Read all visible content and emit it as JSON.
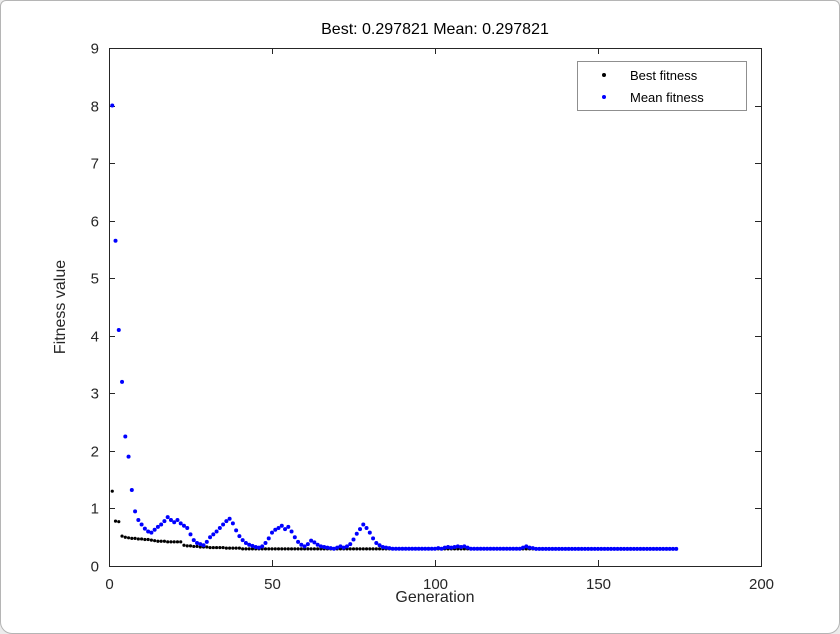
{
  "window": {
    "background": "#ffffff",
    "border_color": "#b5b5b5"
  },
  "chart_data": {
    "type": "scatter",
    "title": "Best: 0.297821 Mean: 0.297821",
    "xlabel": "Generation",
    "ylabel": "Fitness value",
    "xlim": [
      0,
      200
    ],
    "ylim": [
      0,
      9
    ],
    "x_ticks": [
      0,
      50,
      100,
      150,
      200
    ],
    "y_ticks": [
      0,
      1,
      2,
      3,
      4,
      5,
      6,
      7,
      8,
      9
    ],
    "grid": false,
    "axis_color": "#262626",
    "x_start": 1,
    "legend": {
      "position": "top-right",
      "entries": [
        {
          "label": "Best fitness",
          "color": "#000000"
        },
        {
          "label": "Mean fitness",
          "color": "#0000ff"
        }
      ]
    },
    "series": [
      {
        "name": "Best fitness",
        "color": "#000000",
        "marker": "point",
        "marker_size": 1.6,
        "values": [
          1.3,
          0.78,
          0.77,
          0.52,
          0.5,
          0.49,
          0.48,
          0.48,
          0.47,
          0.47,
          0.46,
          0.46,
          0.45,
          0.44,
          0.43,
          0.43,
          0.43,
          0.42,
          0.42,
          0.42,
          0.42,
          0.42,
          0.36,
          0.35,
          0.35,
          0.34,
          0.34,
          0.33,
          0.33,
          0.33,
          0.32,
          0.32,
          0.32,
          0.32,
          0.32,
          0.31,
          0.31,
          0.31,
          0.31,
          0.31,
          0.298,
          0.298,
          0.298,
          0.298,
          0.298,
          0.298,
          0.298,
          0.298,
          0.298,
          0.298,
          0.298,
          0.298,
          0.298,
          0.298,
          0.298,
          0.298,
          0.298,
          0.298,
          0.298,
          0.298,
          0.298,
          0.298,
          0.298,
          0.298,
          0.298,
          0.298,
          0.298,
          0.298,
          0.298,
          0.298,
          0.298,
          0.298,
          0.298,
          0.298,
          0.298,
          0.298,
          0.298,
          0.298,
          0.298,
          0.298,
          0.298,
          0.298,
          0.298,
          0.298,
          0.298,
          0.298,
          0.298,
          0.298,
          0.298,
          0.298,
          0.298,
          0.298,
          0.298,
          0.298,
          0.298,
          0.298,
          0.298,
          0.298,
          0.298,
          0.298,
          0.298,
          0.298,
          0.298,
          0.298,
          0.298,
          0.298,
          0.298,
          0.298,
          0.298,
          0.298,
          0.298,
          0.298,
          0.298,
          0.298,
          0.298,
          0.298,
          0.298,
          0.298,
          0.298,
          0.298,
          0.298,
          0.298,
          0.298,
          0.298,
          0.298,
          0.298,
          0.298,
          0.298,
          0.298,
          0.298,
          0.298,
          0.298,
          0.298,
          0.298,
          0.298,
          0.298,
          0.298,
          0.298,
          0.298,
          0.298,
          0.298,
          0.298,
          0.298,
          0.298,
          0.298,
          0.298,
          0.298,
          0.298,
          0.298,
          0.298,
          0.298,
          0.298,
          0.298,
          0.298,
          0.298,
          0.298,
          0.298,
          0.298,
          0.298,
          0.298,
          0.298,
          0.298,
          0.298,
          0.298,
          0.298,
          0.298,
          0.298,
          0.298,
          0.298,
          0.298,
          0.298,
          0.298,
          0.298,
          0.298
        ]
      },
      {
        "name": "Mean fitness",
        "color": "#0000ff",
        "marker": "point",
        "marker_size": 2.0,
        "values": [
          8.0,
          5.65,
          4.1,
          3.2,
          2.25,
          1.9,
          1.32,
          0.95,
          0.8,
          0.72,
          0.65,
          0.6,
          0.58,
          0.63,
          0.68,
          0.72,
          0.78,
          0.85,
          0.8,
          0.76,
          0.8,
          0.74,
          0.7,
          0.66,
          0.55,
          0.45,
          0.4,
          0.38,
          0.36,
          0.42,
          0.5,
          0.55,
          0.6,
          0.66,
          0.72,
          0.78,
          0.82,
          0.74,
          0.62,
          0.52,
          0.45,
          0.4,
          0.37,
          0.35,
          0.33,
          0.32,
          0.34,
          0.4,
          0.48,
          0.58,
          0.63,
          0.66,
          0.7,
          0.64,
          0.68,
          0.6,
          0.5,
          0.42,
          0.37,
          0.34,
          0.38,
          0.44,
          0.41,
          0.37,
          0.34,
          0.33,
          0.32,
          0.31,
          0.3,
          0.32,
          0.34,
          0.32,
          0.34,
          0.38,
          0.46,
          0.56,
          0.64,
          0.72,
          0.66,
          0.58,
          0.48,
          0.4,
          0.36,
          0.33,
          0.32,
          0.31,
          0.3,
          0.3,
          0.3,
          0.3,
          0.3,
          0.3,
          0.3,
          0.3,
          0.3,
          0.3,
          0.3,
          0.3,
          0.3,
          0.3,
          0.31,
          0.3,
          0.32,
          0.33,
          0.32,
          0.33,
          0.34,
          0.33,
          0.34,
          0.32,
          0.3,
          0.3,
          0.3,
          0.3,
          0.3,
          0.3,
          0.3,
          0.3,
          0.3,
          0.3,
          0.3,
          0.3,
          0.3,
          0.3,
          0.3,
          0.3,
          0.32,
          0.34,
          0.32,
          0.31,
          0.298,
          0.298,
          0.298,
          0.298,
          0.298,
          0.298,
          0.298,
          0.298,
          0.298,
          0.298,
          0.298,
          0.298,
          0.298,
          0.298,
          0.298,
          0.298,
          0.298,
          0.298,
          0.298,
          0.298,
          0.298,
          0.298,
          0.298,
          0.298,
          0.298,
          0.298,
          0.298,
          0.298,
          0.298,
          0.298,
          0.298,
          0.298,
          0.298,
          0.298,
          0.298,
          0.298,
          0.298,
          0.298,
          0.298,
          0.298,
          0.298,
          0.298,
          0.298,
          0.298
        ]
      }
    ]
  }
}
